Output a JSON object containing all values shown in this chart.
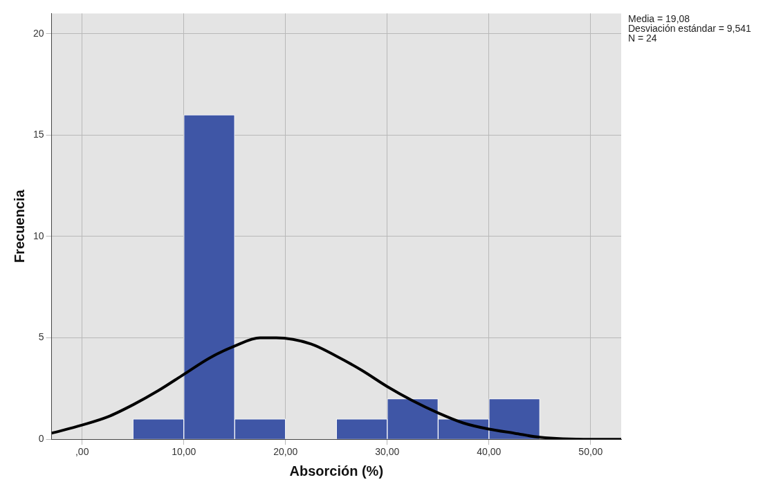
{
  "chart_data": {
    "type": "histogram",
    "xlabel": "Absorción (%)",
    "ylabel": "Frecuencia",
    "bins": [
      5,
      10,
      15,
      20,
      25,
      30,
      35,
      40,
      45
    ],
    "values": [
      1,
      16,
      1,
      0,
      1,
      2,
      1,
      2
    ],
    "color": "#3f56a6",
    "series": [
      {
        "type": "line",
        "color": "#000000",
        "x": [
          -3,
          0,
          2.5,
          5,
          7.5,
          10,
          12.5,
          15,
          17.5,
          19.08,
          22.5,
          25,
          27.5,
          30,
          32.5,
          35,
          37.5,
          40,
          42.5,
          45,
          50,
          53
        ],
        "values": [
          0.3,
          0.7,
          1.1,
          1.7,
          2.4,
          3.2,
          4.0,
          4.6,
          5.0,
          5.0,
          4.7,
          4.1,
          3.4,
          2.6,
          1.9,
          1.3,
          0.8,
          0.5,
          0.3,
          0.1,
          0.0,
          0.0
        ]
      }
    ],
    "xlim": [
      -3,
      53
    ],
    "xticks": [
      {
        "value": 0,
        "label": ",00"
      },
      {
        "value": 10,
        "label": "10,00"
      },
      {
        "value": 20,
        "label": "20,00"
      },
      {
        "value": 30,
        "label": "30,00"
      },
      {
        "value": 40,
        "label": "40,00"
      },
      {
        "value": 50,
        "label": "50,00"
      }
    ],
    "ylim": [
      0,
      21
    ],
    "yticks": [
      0,
      5,
      10,
      15,
      20
    ],
    "grid": true,
    "legend": false,
    "annotations": [
      "Media = 19,08",
      "Desviación estándar = 9,541",
      "N = 24"
    ]
  }
}
